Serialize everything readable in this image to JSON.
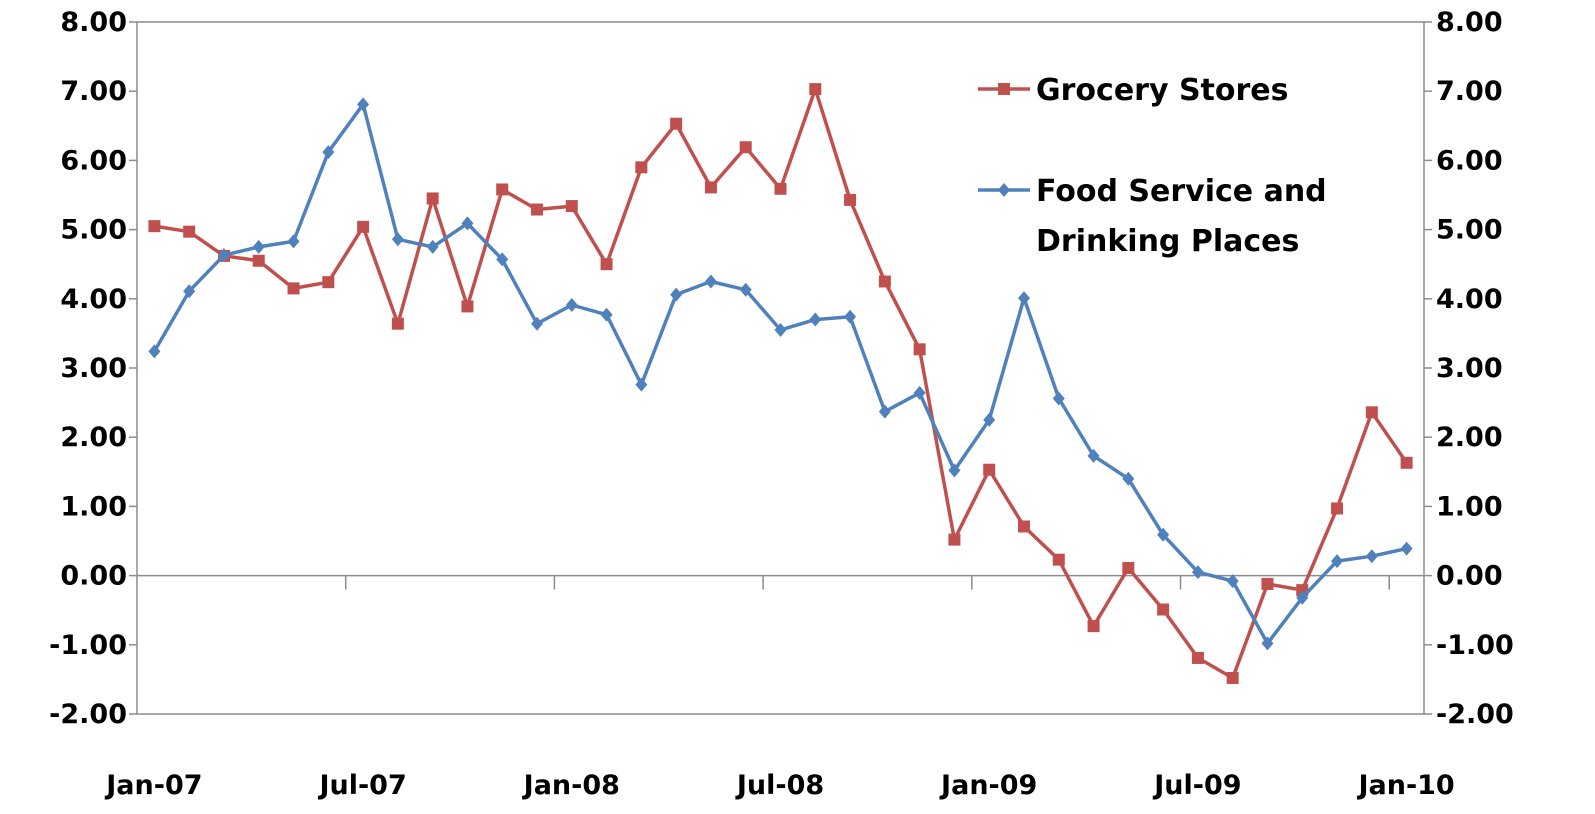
{
  "chart_data": {
    "type": "line",
    "title": "",
    "xlabel": "",
    "ylabel": "",
    "ylim": [
      -2,
      8
    ],
    "y_ticks": [
      "8.00",
      "7.00",
      "6.00",
      "5.00",
      "4.00",
      "3.00",
      "2.00",
      "1.00",
      "0.00",
      "-1.00",
      "-2.00"
    ],
    "y_ticks_right": [
      "8.00",
      "7.00",
      "6.00",
      "5.00",
      "4.00",
      "3.00",
      "2.00",
      "1.00",
      "0.00",
      "-1.00",
      "-2.00"
    ],
    "x_tick_labels": [
      "Jan-07",
      "Jul-07",
      "Jan-08",
      "Jul-08",
      "Jan-09",
      "Jul-09",
      "Jan-10"
    ],
    "x": [
      "Jan-07",
      "Feb-07",
      "Mar-07",
      "Apr-07",
      "May-07",
      "Jun-07",
      "Jul-07",
      "Aug-07",
      "Sep-07",
      "Oct-07",
      "Nov-07",
      "Dec-07",
      "Jan-08",
      "Feb-08",
      "Mar-08",
      "Apr-08",
      "May-08",
      "Jun-08",
      "Jul-08",
      "Aug-08",
      "Sep-08",
      "Oct-08",
      "Nov-08",
      "Dec-08",
      "Jan-09",
      "Feb-09",
      "Mar-09",
      "Apr-09",
      "May-09",
      "Jun-09",
      "Jul-09",
      "Aug-09",
      "Sep-09",
      "Oct-09",
      "Nov-09",
      "Dec-09",
      "Jan-10"
    ],
    "grid": false,
    "legend_position": "top-right",
    "series": [
      {
        "name": "Grocery Stores",
        "color": "#c0504d",
        "marker": "square",
        "values": [
          5.05,
          4.97,
          4.62,
          4.55,
          4.15,
          4.24,
          5.04,
          3.64,
          5.45,
          3.89,
          5.58,
          5.29,
          5.34,
          4.5,
          5.9,
          6.53,
          5.61,
          6.19,
          5.59,
          7.03,
          5.43,
          4.25,
          3.27,
          0.52,
          1.53,
          0.71,
          0.23,
          -0.73,
          0.11,
          -0.49,
          -1.19,
          -1.48,
          -0.12,
          -0.21,
          0.97,
          2.36,
          1.63
        ]
      },
      {
        "name": "Food Service and Drinking Places",
        "name_lines": [
          "Food Service and",
          "Drinking Places"
        ],
        "color": "#4f81bd",
        "marker": "diamond",
        "values": [
          3.24,
          4.11,
          4.63,
          4.75,
          4.83,
          6.12,
          6.81,
          4.86,
          4.75,
          5.09,
          4.57,
          3.64,
          3.91,
          3.77,
          2.76,
          4.06,
          4.25,
          4.13,
          3.55,
          3.7,
          3.74,
          2.37,
          2.64,
          1.52,
          2.25,
          4.01,
          2.56,
          1.73,
          1.4,
          0.59,
          0.05,
          -0.08,
          -0.98,
          -0.32,
          0.21,
          0.28,
          0.39
        ]
      }
    ]
  }
}
